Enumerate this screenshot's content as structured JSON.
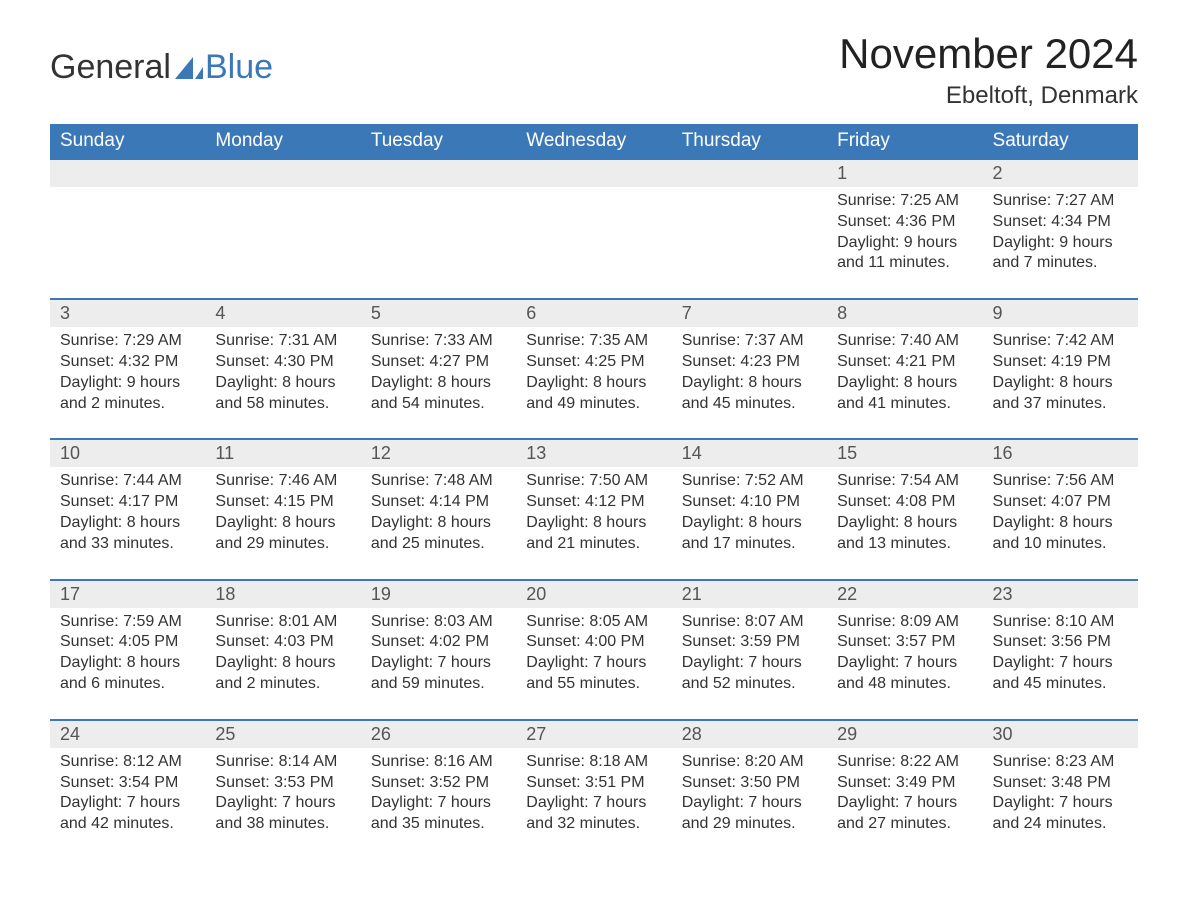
{
  "logo": {
    "text_general": "General",
    "text_blue": "Blue"
  },
  "title": "November 2024",
  "location": "Ebeltoft, Denmark",
  "colors": {
    "header_bg": "#3b78b8",
    "header_text": "#ffffff",
    "daynum_bg": "#ededed",
    "daynum_text": "#555555",
    "body_text": "#333333",
    "row_border": "#3b78b8",
    "page_bg": "#ffffff",
    "logo_blue": "#3b78b8"
  },
  "typography": {
    "title_fontsize": 42,
    "location_fontsize": 24,
    "weekday_fontsize": 19,
    "daynum_fontsize": 18,
    "body_fontsize": 16,
    "font_family": "Arial"
  },
  "weekdays": [
    "Sunday",
    "Monday",
    "Tuesday",
    "Wednesday",
    "Thursday",
    "Friday",
    "Saturday"
  ],
  "weeks": [
    [
      null,
      null,
      null,
      null,
      null,
      {
        "day": "1",
        "sunrise": "Sunrise: 7:25 AM",
        "sunset": "Sunset: 4:36 PM",
        "daylight": "Daylight: 9 hours and 11 minutes."
      },
      {
        "day": "2",
        "sunrise": "Sunrise: 7:27 AM",
        "sunset": "Sunset: 4:34 PM",
        "daylight": "Daylight: 9 hours and 7 minutes."
      }
    ],
    [
      {
        "day": "3",
        "sunrise": "Sunrise: 7:29 AM",
        "sunset": "Sunset: 4:32 PM",
        "daylight": "Daylight: 9 hours and 2 minutes."
      },
      {
        "day": "4",
        "sunrise": "Sunrise: 7:31 AM",
        "sunset": "Sunset: 4:30 PM",
        "daylight": "Daylight: 8 hours and 58 minutes."
      },
      {
        "day": "5",
        "sunrise": "Sunrise: 7:33 AM",
        "sunset": "Sunset: 4:27 PM",
        "daylight": "Daylight: 8 hours and 54 minutes."
      },
      {
        "day": "6",
        "sunrise": "Sunrise: 7:35 AM",
        "sunset": "Sunset: 4:25 PM",
        "daylight": "Daylight: 8 hours and 49 minutes."
      },
      {
        "day": "7",
        "sunrise": "Sunrise: 7:37 AM",
        "sunset": "Sunset: 4:23 PM",
        "daylight": "Daylight: 8 hours and 45 minutes."
      },
      {
        "day": "8",
        "sunrise": "Sunrise: 7:40 AM",
        "sunset": "Sunset: 4:21 PM",
        "daylight": "Daylight: 8 hours and 41 minutes."
      },
      {
        "day": "9",
        "sunrise": "Sunrise: 7:42 AM",
        "sunset": "Sunset: 4:19 PM",
        "daylight": "Daylight: 8 hours and 37 minutes."
      }
    ],
    [
      {
        "day": "10",
        "sunrise": "Sunrise: 7:44 AM",
        "sunset": "Sunset: 4:17 PM",
        "daylight": "Daylight: 8 hours and 33 minutes."
      },
      {
        "day": "11",
        "sunrise": "Sunrise: 7:46 AM",
        "sunset": "Sunset: 4:15 PM",
        "daylight": "Daylight: 8 hours and 29 minutes."
      },
      {
        "day": "12",
        "sunrise": "Sunrise: 7:48 AM",
        "sunset": "Sunset: 4:14 PM",
        "daylight": "Daylight: 8 hours and 25 minutes."
      },
      {
        "day": "13",
        "sunrise": "Sunrise: 7:50 AM",
        "sunset": "Sunset: 4:12 PM",
        "daylight": "Daylight: 8 hours and 21 minutes."
      },
      {
        "day": "14",
        "sunrise": "Sunrise: 7:52 AM",
        "sunset": "Sunset: 4:10 PM",
        "daylight": "Daylight: 8 hours and 17 minutes."
      },
      {
        "day": "15",
        "sunrise": "Sunrise: 7:54 AM",
        "sunset": "Sunset: 4:08 PM",
        "daylight": "Daylight: 8 hours and 13 minutes."
      },
      {
        "day": "16",
        "sunrise": "Sunrise: 7:56 AM",
        "sunset": "Sunset: 4:07 PM",
        "daylight": "Daylight: 8 hours and 10 minutes."
      }
    ],
    [
      {
        "day": "17",
        "sunrise": "Sunrise: 7:59 AM",
        "sunset": "Sunset: 4:05 PM",
        "daylight": "Daylight: 8 hours and 6 minutes."
      },
      {
        "day": "18",
        "sunrise": "Sunrise: 8:01 AM",
        "sunset": "Sunset: 4:03 PM",
        "daylight": "Daylight: 8 hours and 2 minutes."
      },
      {
        "day": "19",
        "sunrise": "Sunrise: 8:03 AM",
        "sunset": "Sunset: 4:02 PM",
        "daylight": "Daylight: 7 hours and 59 minutes."
      },
      {
        "day": "20",
        "sunrise": "Sunrise: 8:05 AM",
        "sunset": "Sunset: 4:00 PM",
        "daylight": "Daylight: 7 hours and 55 minutes."
      },
      {
        "day": "21",
        "sunrise": "Sunrise: 8:07 AM",
        "sunset": "Sunset: 3:59 PM",
        "daylight": "Daylight: 7 hours and 52 minutes."
      },
      {
        "day": "22",
        "sunrise": "Sunrise: 8:09 AM",
        "sunset": "Sunset: 3:57 PM",
        "daylight": "Daylight: 7 hours and 48 minutes."
      },
      {
        "day": "23",
        "sunrise": "Sunrise: 8:10 AM",
        "sunset": "Sunset: 3:56 PM",
        "daylight": "Daylight: 7 hours and 45 minutes."
      }
    ],
    [
      {
        "day": "24",
        "sunrise": "Sunrise: 8:12 AM",
        "sunset": "Sunset: 3:54 PM",
        "daylight": "Daylight: 7 hours and 42 minutes."
      },
      {
        "day": "25",
        "sunrise": "Sunrise: 8:14 AM",
        "sunset": "Sunset: 3:53 PM",
        "daylight": "Daylight: 7 hours and 38 minutes."
      },
      {
        "day": "26",
        "sunrise": "Sunrise: 8:16 AM",
        "sunset": "Sunset: 3:52 PM",
        "daylight": "Daylight: 7 hours and 35 minutes."
      },
      {
        "day": "27",
        "sunrise": "Sunrise: 8:18 AM",
        "sunset": "Sunset: 3:51 PM",
        "daylight": "Daylight: 7 hours and 32 minutes."
      },
      {
        "day": "28",
        "sunrise": "Sunrise: 8:20 AM",
        "sunset": "Sunset: 3:50 PM",
        "daylight": "Daylight: 7 hours and 29 minutes."
      },
      {
        "day": "29",
        "sunrise": "Sunrise: 8:22 AM",
        "sunset": "Sunset: 3:49 PM",
        "daylight": "Daylight: 7 hours and 27 minutes."
      },
      {
        "day": "30",
        "sunrise": "Sunrise: 8:23 AM",
        "sunset": "Sunset: 3:48 PM",
        "daylight": "Daylight: 7 hours and 24 minutes."
      }
    ]
  ]
}
